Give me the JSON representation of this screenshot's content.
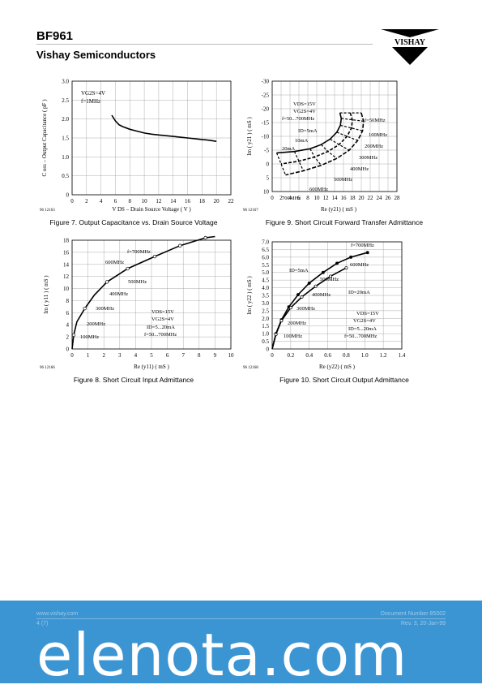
{
  "header": {
    "title": "BF961",
    "subtitle": "Vishay Semiconductors",
    "logo_text": "VISHAY"
  },
  "figures": [
    {
      "id": "fig7",
      "caption": "Figure 7.  Output Capacitance vs. Drain Source Voltage",
      "code": "96 12163",
      "ylabel": "C oss – Output Capacitance ( pF )",
      "xlabel": "V DS – Drain Source Voltage ( V )",
      "conditions": [
        "VG2S=4V",
        "f=1MHz"
      ],
      "x_ticks": [
        "0",
        "2",
        "4",
        "6",
        "8",
        "10",
        "12",
        "14",
        "16",
        "18",
        "20",
        "22"
      ],
      "y_ticks": [
        "0",
        "0.5",
        "1.0",
        "1.5",
        "2.0",
        "2.5",
        "3.0"
      ]
    },
    {
      "id": "fig9",
      "caption": "Figure 9.  Short Circuit Forward Transfer Admittance",
      "code": "96 12167",
      "ylabel": "Im ( y21 ) ( mS )",
      "xlabel": "Re (y21)  ( mS )",
      "conditions": [
        "VDS=15V",
        "VG2S=4V",
        "f=50...700MHz"
      ],
      "labels": [
        "ID=5mA",
        "10mA",
        "20mA",
        "f=50MHz",
        "100MHz",
        "200MHz",
        "300MHz",
        "400MHz",
        "500MHz",
        "600MHz",
        "700MHz"
      ],
      "x_ticks": [
        "0",
        "2",
        "4",
        "6",
        "8",
        "10",
        "12",
        "14",
        "16",
        "18",
        "20",
        "22",
        "24",
        "26",
        "28"
      ],
      "y_ticks": [
        "10",
        "5",
        "0",
        "-5",
        "-10",
        "-15",
        "-20",
        "-25",
        "-30"
      ]
    },
    {
      "id": "fig8",
      "caption": "Figure 8.  Short Circuit Input Admittance",
      "code": "96 12166",
      "ylabel": "Im ( y11 ) ( mS )",
      "xlabel": "Re (y11)  ( mS )",
      "conditions": [
        "VDS=15V",
        "VG2S=4V",
        "ID=5...20mA",
        "f=50...700MHz"
      ],
      "labels": [
        "f=700MHz",
        "600MHz",
        "500MHz",
        "400MHz",
        "300MHz",
        "200MHz",
        "100MHz"
      ],
      "x_ticks": [
        "0",
        "1",
        "2",
        "3",
        "4",
        "5",
        "6",
        "7",
        "8",
        "9",
        "10"
      ],
      "y_ticks": [
        "0",
        "2",
        "4",
        "6",
        "8",
        "10",
        "12",
        "14",
        "16",
        "18"
      ]
    },
    {
      "id": "fig10",
      "caption": "Figure 10.  Short Circuit Output Admittance",
      "code": "96 12168",
      "ylabel": "Im ( y22 ) ( mS )",
      "xlabel": "Re (y22)  ( mS )",
      "conditions": [
        "VDS=15V",
        "VG2S=4V",
        "ID=5...20mA",
        "f=50...700MHz"
      ],
      "labels": [
        "f=700MHz",
        "600MHz",
        "ID=5mA",
        "500MHz",
        "ID=20mA",
        "400MHz",
        "300MHz",
        "200MHz",
        "100MHz"
      ],
      "x_ticks": [
        "0",
        "0.2",
        "0.4",
        "0.6",
        "0.8",
        "1.0",
        "1.2",
        "1.4"
      ],
      "y_ticks": [
        "0",
        "0.5",
        "1.0",
        "1.5",
        "2.0",
        "2.5",
        "3.0",
        "3.5",
        "4.0",
        "4.5",
        "5.0",
        "5.5",
        "6.0",
        "6.5",
        "7.0"
      ]
    }
  ],
  "chart_data": [
    {
      "type": "line",
      "title": "",
      "xlabel": "VDS – Drain Source Voltage ( V )",
      "ylabel": "Coss – Output Capacitance ( pF )",
      "xlim": [
        0,
        22
      ],
      "ylim": [
        0,
        3.0
      ],
      "grid": true,
      "x": [
        5.5,
        6,
        6.5,
        7,
        8,
        9,
        10,
        11,
        12,
        13,
        14,
        15,
        16,
        17,
        18,
        19,
        20
      ],
      "values": [
        2.1,
        1.95,
        1.85,
        1.8,
        1.73,
        1.68,
        1.63,
        1.6,
        1.58,
        1.56,
        1.54,
        1.52,
        1.5,
        1.48,
        1.46,
        1.44,
        1.41
      ]
    },
    {
      "type": "line",
      "title": "",
      "xlabel": "Re (y21) ( mS )",
      "ylabel": "Im ( y21 ) ( mS )",
      "xlim": [
        0,
        28
      ],
      "ylim": [
        -30,
        10
      ],
      "grid": true,
      "series": [
        {
          "name": "ID=5mA",
          "x": [
            15.2,
            15.5,
            15.3,
            14.5,
            13,
            11,
            8.5,
            5,
            1
          ],
          "y": [
            -1.5,
            -3.5,
            -6,
            -8.5,
            -11,
            -13,
            -14.5,
            -15.5,
            -16
          ]
        },
        {
          "name": "10mA",
          "x": [
            17.5,
            18,
            17.8,
            16.8,
            15,
            12.5,
            9.5,
            6,
            2
          ],
          "y": [
            -1.5,
            -4,
            -7,
            -10,
            -13,
            -15.5,
            -17.5,
            -19,
            -20
          ]
        },
        {
          "name": "20mA",
          "x": [
            20,
            20.5,
            20.3,
            19.2,
            17.3,
            14.5,
            11,
            7,
            3
          ],
          "y": [
            -1.5,
            -4.5,
            -8,
            -11.5,
            -15,
            -18,
            -20.5,
            -22.5,
            -24
          ]
        }
      ]
    },
    {
      "type": "line",
      "title": "",
      "xlabel": "Re (y11) ( mS )",
      "ylabel": "Im ( y11 ) ( mS )",
      "xlim": [
        0,
        10
      ],
      "ylim": [
        0,
        18
      ],
      "grid": true,
      "series": [
        {
          "name": "",
          "x": [
            0,
            0.1,
            0.3,
            0.8,
            1.4,
            2.2,
            3.5,
            5.2,
            6.8,
            8.4,
            9.0
          ],
          "y": [
            0,
            2.3,
            4.5,
            6.7,
            8.9,
            11.1,
            13.3,
            15.3,
            17.1,
            18.4,
            18.6
          ]
        }
      ],
      "points": [
        [
          0.1,
          2.3
        ],
        [
          0.8,
          6.7
        ],
        [
          2.2,
          11.1
        ],
        [
          3.5,
          13.3
        ],
        [
          5.2,
          15.3
        ],
        [
          6.8,
          17.1
        ],
        [
          8.4,
          18.4
        ]
      ]
    },
    {
      "type": "line",
      "title": "",
      "xlabel": "Re (y22) ( mS )",
      "ylabel": "Im ( y22 ) ( mS )",
      "xlim": [
        0,
        1.4
      ],
      "ylim": [
        0,
        7.0
      ],
      "grid": true,
      "series": [
        {
          "name": "ID=5mA",
          "x": [
            0,
            0.04,
            0.1,
            0.18,
            0.28,
            0.4,
            0.55,
            0.7,
            0.85,
            1.03
          ],
          "y": [
            0,
            1.0,
            1.9,
            2.75,
            3.55,
            4.3,
            5.0,
            5.6,
            6.0,
            6.3
          ]
        },
        {
          "name": "ID=20mA",
          "x": [
            0,
            0.04,
            0.1,
            0.2,
            0.32,
            0.47,
            0.63,
            0.8
          ],
          "y": [
            0,
            0.95,
            1.85,
            2.7,
            3.4,
            4.1,
            4.75,
            5.3
          ]
        }
      ]
    }
  ],
  "footer": {
    "link": "www.vishay.com",
    "page": "4 (7)",
    "docnum": "Document Number 85002",
    "rev": "Rev. 3, 20-Jan-99",
    "watermark": "elenota.com"
  }
}
